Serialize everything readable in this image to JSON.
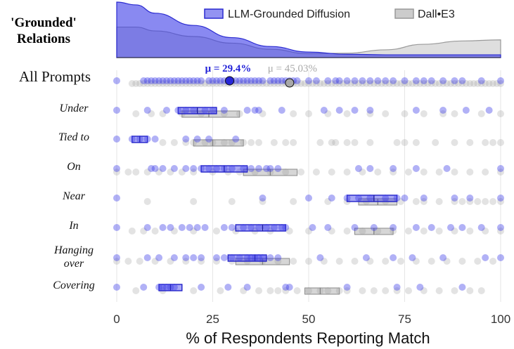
{
  "chart_data": {
    "type": "scatter",
    "title": "'Grounded' Relations",
    "xlabel": "% of Respondents Reporting Match",
    "xlim": [
      0,
      100
    ],
    "x_ticks": [
      0,
      25,
      50,
      75,
      100
    ],
    "grid": true,
    "legend_position": "top-right",
    "colors": {
      "llm": "#3b3be8",
      "dalle": "#a9a9a9"
    },
    "series": [
      {
        "name": "LLM-Grounded Diffusion",
        "key": "llm"
      },
      {
        "name": "Dall•E3",
        "key": "dalle"
      }
    ],
    "summary": [
      {
        "series": "llm",
        "label": "μ = 29.4%",
        "mean": 29.4
      },
      {
        "series": "dalle",
        "label": "μ = 45.03%",
        "mean": 45.03
      }
    ],
    "density": {
      "x": [
        0,
        5,
        10,
        20,
        30,
        40,
        50,
        60,
        70,
        80,
        90,
        100
      ],
      "llm": [
        1.0,
        0.95,
        0.8,
        0.58,
        0.36,
        0.2,
        0.1,
        0.06,
        0.05,
        0.05,
        0.05,
        0.05
      ],
      "dalle": [
        0.55,
        0.55,
        0.48,
        0.38,
        0.26,
        0.15,
        0.07,
        0.08,
        0.14,
        0.24,
        0.3,
        0.32
      ]
    },
    "rows": [
      {
        "label": "All Prompts",
        "llm_points": [
          0,
          7,
          8,
          9,
          10,
          11,
          12,
          13,
          14,
          15,
          16,
          17,
          18,
          19,
          20,
          21,
          22,
          24,
          25,
          26,
          27,
          28,
          29,
          30,
          31,
          32,
          33,
          34,
          35,
          36,
          37,
          38,
          40,
          41,
          42,
          43,
          44,
          45,
          46,
          47,
          50,
          52,
          55,
          57,
          58,
          60,
          62,
          64,
          66,
          68,
          70,
          72,
          75,
          78,
          80,
          82,
          85,
          88,
          90,
          95,
          100
        ],
        "dalle_points": [
          4,
          5,
          6,
          7,
          8,
          9,
          10,
          11,
          12,
          13,
          14,
          15,
          16,
          17,
          18,
          19,
          20,
          21,
          22,
          23,
          24,
          25,
          26,
          27,
          28,
          29,
          30,
          31,
          32,
          33,
          34,
          35,
          36,
          37,
          38,
          39,
          40,
          41,
          42,
          43,
          44,
          45,
          46,
          47,
          48,
          49,
          50,
          51,
          52,
          53,
          54,
          55,
          56,
          57,
          58,
          59,
          60,
          61,
          62,
          63,
          64,
          65,
          66,
          67,
          68,
          69,
          70,
          71,
          72,
          73,
          74,
          75,
          76,
          77,
          78,
          79,
          80,
          81,
          82,
          83,
          84,
          85,
          86,
          87,
          88,
          89,
          90,
          91,
          92,
          93,
          94,
          95,
          96,
          97,
          98,
          99,
          100
        ],
        "llm_box": null,
        "dalle_box": null
      },
      {
        "label": "Under",
        "llm_points": [
          0,
          8,
          13,
          16,
          18,
          20,
          23,
          25,
          28,
          34,
          36,
          37,
          43,
          54,
          58,
          62,
          66,
          78,
          85,
          91,
          97
        ],
        "dalle_points": [
          5,
          9,
          12,
          17,
          22,
          28,
          32,
          38,
          46,
          50,
          55,
          60,
          66,
          70,
          75,
          80,
          85,
          88,
          95,
          100
        ],
        "llm_box": [
          16,
          21,
          26
        ],
        "dalle_box": [
          17,
          24,
          32
        ]
      },
      {
        "label": "Tied to",
        "llm_points": [
          0,
          4,
          6,
          8,
          10,
          18,
          21,
          24,
          31
        ],
        "dalle_points": [
          12,
          15,
          18,
          20,
          23,
          25,
          28,
          30,
          33,
          35,
          37,
          41,
          44,
          46,
          53,
          56,
          57,
          60,
          62,
          66,
          73,
          75,
          78,
          83,
          88,
          92,
          96,
          98,
          100
        ],
        "llm_box": [
          4,
          6,
          8
        ],
        "dalle_box": [
          20,
          25,
          33
        ]
      },
      {
        "label": "On",
        "llm_points": [
          0,
          9,
          10,
          12,
          15,
          18,
          20,
          22,
          24,
          26,
          28,
          30,
          33,
          35,
          37,
          39,
          40,
          42,
          63,
          66,
          72,
          78,
          86,
          100
        ],
        "dalle_points": [
          0,
          3,
          5,
          8,
          11,
          14,
          17,
          20,
          25,
          29,
          32,
          36,
          40,
          44,
          48,
          52,
          56,
          60,
          64,
          68,
          72,
          76,
          80,
          84,
          88,
          92,
          96,
          100
        ],
        "llm_box": [
          22,
          28,
          34
        ],
        "dalle_box": [
          33,
          40,
          47
        ]
      },
      {
        "label": "Near",
        "llm_points": [
          0,
          38,
          50,
          56,
          60,
          63,
          66,
          70,
          73,
          75,
          80,
          88,
          92,
          100
        ],
        "dalle_points": [
          8,
          20,
          30,
          38,
          46,
          55,
          60,
          65,
          70,
          74,
          78,
          80,
          84,
          88,
          90,
          92,
          94,
          96,
          98,
          100
        ],
        "llm_box": [
          60,
          67,
          73
        ],
        "dalle_box": [
          63,
          68,
          73
        ]
      },
      {
        "label": "In",
        "llm_points": [
          0,
          8,
          12,
          14,
          17,
          19,
          21,
          23,
          28,
          30,
          33,
          35,
          37,
          39,
          41,
          43,
          44,
          51,
          55,
          62,
          67,
          72,
          78,
          82,
          87,
          90,
          95,
          100
        ],
        "dalle_points": [
          4,
          7,
          10,
          15,
          20,
          26,
          31,
          36,
          40,
          45,
          50,
          56,
          60,
          64,
          68,
          72,
          76,
          80,
          84,
          88,
          92,
          96,
          100
        ],
        "llm_box": [
          31,
          38,
          44
        ],
        "dalle_box": [
          62,
          67,
          72
        ]
      },
      {
        "label": "Hanging over",
        "llm_points": [
          0,
          8,
          11,
          15,
          18,
          20,
          22,
          26,
          28,
          30,
          32,
          34,
          35,
          36,
          37,
          38,
          40,
          42,
          53,
          65,
          72,
          77,
          85,
          96,
          100
        ],
        "dalle_points": [
          0,
          3,
          6,
          10,
          14,
          18,
          22,
          26,
          30,
          34,
          38,
          42,
          46,
          50,
          54,
          58,
          62,
          66,
          70,
          74,
          78,
          82,
          86,
          90,
          94,
          98
        ],
        "llm_box": [
          29,
          36,
          39
        ],
        "dalle_box": [
          31,
          38,
          45
        ]
      },
      {
        "label": "Covering",
        "llm_points": [
          0,
          7,
          11,
          12,
          13,
          14,
          15,
          22,
          29,
          34,
          44,
          45,
          60,
          73,
          79,
          90
        ],
        "dalle_points": [
          5,
          12,
          20,
          27,
          33,
          37,
          40,
          42,
          44,
          47,
          50,
          53,
          55,
          58,
          60,
          64,
          67,
          70,
          73,
          76,
          80,
          84,
          88,
          92,
          95
        ],
        "llm_box": [
          11,
          14,
          17
        ],
        "dalle_box": [
          49,
          53,
          58
        ]
      }
    ]
  }
}
